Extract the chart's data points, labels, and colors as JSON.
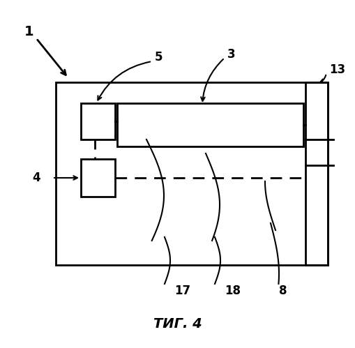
{
  "title": "ΤИГ. 4",
  "bg_color": "#ffffff",
  "line_color": "#000000",
  "label_1": "1",
  "label_3": "3",
  "label_4": "4",
  "label_5": "5",
  "label_8": "8",
  "label_13": "13",
  "label_17": "17",
  "label_18": "18"
}
